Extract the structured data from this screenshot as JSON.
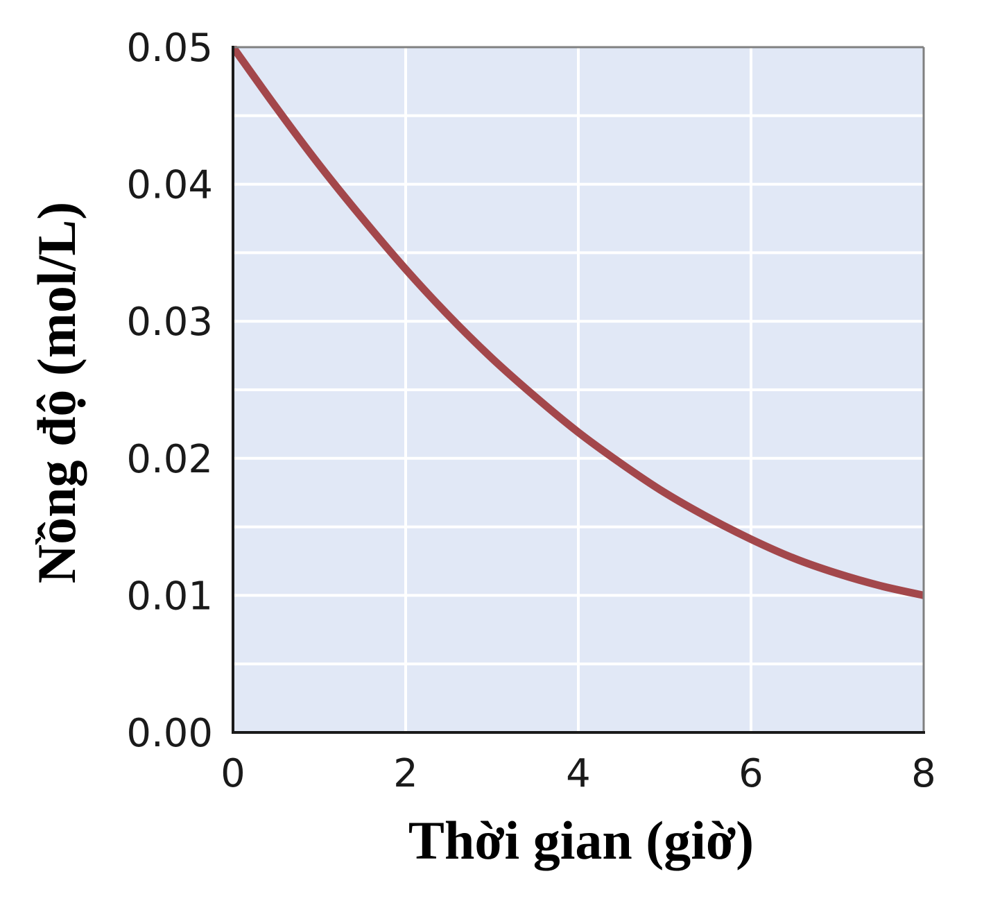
{
  "chart_data": {
    "type": "line",
    "title": "",
    "xlabel": "Thời gian (giờ)",
    "ylabel": "Nồng độ (mol/L)",
    "xlim": [
      0,
      8
    ],
    "ylim": [
      0,
      0.05
    ],
    "x_ticks": [
      "0",
      "2",
      "4",
      "6",
      "8"
    ],
    "y_ticks": [
      "0.00",
      "0.01",
      "0.02",
      "0.03",
      "0.04",
      "0.05"
    ],
    "grid": true,
    "legend": "none",
    "series": [
      {
        "x": [
          0,
          0.5,
          1,
          1.5,
          2,
          2.5,
          3,
          3.5,
          4,
          4.5,
          5,
          5.5,
          6,
          6.5,
          7,
          7.5,
          8
        ],
        "y": [
          0.05,
          0.0456,
          0.0414,
          0.0375,
          0.0338,
          0.0304,
          0.0273,
          0.0245,
          0.0219,
          0.0196,
          0.0175,
          0.0157,
          0.0141,
          0.0127,
          0.0116,
          0.0107,
          0.01
        ],
        "color": "#a3474b"
      }
    ],
    "colors": {
      "plot_background": "#e1e8f6",
      "grid": "#ffffff",
      "axis": "#1a1a1a",
      "frame": "#808080",
      "curve": "#a3474b"
    }
  }
}
